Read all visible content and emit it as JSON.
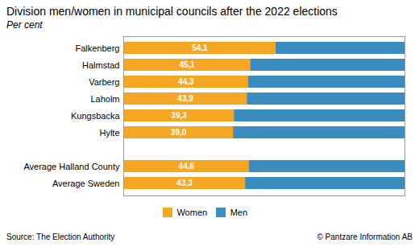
{
  "chart_data": {
    "type": "bar",
    "orientation": "horizontal",
    "stacked": true,
    "title": "Division men/women in municipal councils after the 2022 elections",
    "subtitle": "Per cent",
    "annotations": [
      "Source: The Election Authority",
      "© Pantzare Information AB"
    ],
    "categories": [
      "Average Sweden",
      "Average Halland County",
      null,
      "Hylte",
      "Kungsbacka",
      "Laholm",
      "Varberg",
      "Halmstad",
      "Falkenberg"
    ],
    "series": [
      {
        "name": "Women",
        "color": "#F5A623",
        "values": [
          43.3,
          44.6,
          null,
          39.0,
          39.3,
          43.9,
          44.3,
          45.1,
          54.1
        ],
        "value_labels": [
          "43,3",
          "44,6",
          null,
          "39,0",
          "39,3",
          "43,9",
          "44,3",
          "45,1",
          "54,1"
        ]
      },
      {
        "name": "Men",
        "color": "#3B8DC0",
        "values": [
          56.7,
          55.4,
          null,
          61.0,
          60.7,
          56.1,
          55.7,
          54.9,
          45.9
        ]
      }
    ],
    "xlim": [
      0,
      100
    ],
    "grid": false,
    "legend": "bottom",
    "data_labels": true,
    "tick_labels": "y"
  }
}
